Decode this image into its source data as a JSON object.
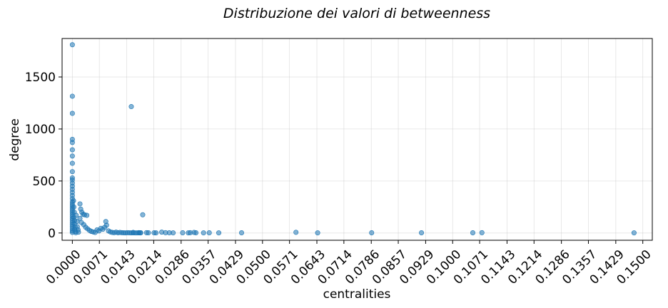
{
  "chart_data": {
    "type": "scatter",
    "title": "Distribuzione dei valori di betweenness",
    "xlabel": "centralities",
    "ylabel": "degree",
    "xlim": [
      -0.0027,
      0.1525
    ],
    "ylim": [
      -70,
      1870
    ],
    "grid": true,
    "point_color": "#1f77b4",
    "point_alpha": 0.55,
    "xticks": [
      "0.0000",
      "0.0071",
      "0.0143",
      "0.0214",
      "0.0286",
      "0.0357",
      "0.0429",
      "0.0500",
      "0.0571",
      "0.0643",
      "0.0714",
      "0.0786",
      "0.0857",
      "0.0929",
      "0.1000",
      "0.1071",
      "0.1143",
      "0.1214",
      "0.1286",
      "0.1357",
      "0.1429",
      "0.1500"
    ],
    "yticks": [
      "0",
      "500",
      "1000",
      "1500"
    ],
    "series": [
      {
        "points": [
          [
            0.0,
            1810
          ],
          [
            0.0,
            1315
          ],
          [
            0.0,
            1150
          ],
          [
            0.0,
            900
          ],
          [
            0.0,
            870
          ],
          [
            0.0,
            800
          ],
          [
            0.0,
            740
          ],
          [
            0.0,
            670
          ],
          [
            0.0,
            590
          ],
          [
            0.0,
            530
          ],
          [
            0.0,
            510
          ],
          [
            0.0,
            480
          ],
          [
            0.0,
            450
          ],
          [
            0.0,
            420
          ],
          [
            0.0,
            390
          ],
          [
            0.0,
            360
          ],
          [
            0.0,
            330
          ],
          [
            0.0,
            300
          ],
          [
            0.0,
            280
          ],
          [
            0.0,
            260
          ],
          [
            0.0,
            240
          ],
          [
            0.0,
            220
          ],
          [
            0.0,
            200
          ],
          [
            0.0,
            180
          ],
          [
            0.0,
            160
          ],
          [
            0.0,
            140
          ],
          [
            0.0,
            120
          ],
          [
            0.0,
            100
          ],
          [
            0.0,
            80
          ],
          [
            0.0,
            60
          ],
          [
            0.0,
            40
          ],
          [
            0.0,
            20
          ],
          [
            0.0,
            5
          ],
          [
            0.0003,
            310
          ],
          [
            0.0004,
            250
          ],
          [
            0.0005,
            200
          ],
          [
            0.0004,
            150
          ],
          [
            0.0006,
            120
          ],
          [
            0.0005,
            90
          ],
          [
            0.0007,
            60
          ],
          [
            0.0006,
            35
          ],
          [
            0.0008,
            15
          ],
          [
            0.0009,
            3
          ],
          [
            0.001,
            170
          ],
          [
            0.0012,
            110
          ],
          [
            0.0013,
            60
          ],
          [
            0.0015,
            30
          ],
          [
            0.0016,
            8
          ],
          [
            0.002,
            280
          ],
          [
            0.0022,
            230
          ],
          [
            0.0025,
            200
          ],
          [
            0.0028,
            180
          ],
          [
            0.0032,
            175
          ],
          [
            0.0038,
            170
          ],
          [
            0.002,
            140
          ],
          [
            0.0024,
            100
          ],
          [
            0.003,
            80
          ],
          [
            0.0035,
            55
          ],
          [
            0.004,
            40
          ],
          [
            0.0045,
            25
          ],
          [
            0.005,
            15
          ],
          [
            0.0055,
            10
          ],
          [
            0.006,
            5
          ],
          [
            0.0065,
            30
          ],
          [
            0.007,
            20
          ],
          [
            0.0075,
            45
          ],
          [
            0.008,
            35
          ],
          [
            0.0085,
            55
          ],
          [
            0.009,
            75
          ],
          [
            0.0088,
            110
          ],
          [
            0.0095,
            20
          ],
          [
            0.01,
            10
          ],
          [
            0.0105,
            5
          ],
          [
            0.011,
            3
          ],
          [
            0.0115,
            8
          ],
          [
            0.012,
            2
          ],
          [
            0.0125,
            5
          ],
          [
            0.013,
            3
          ],
          [
            0.0135,
            2
          ],
          [
            0.014,
            1
          ],
          [
            0.0145,
            3
          ],
          [
            0.015,
            2
          ],
          [
            0.0155,
            1
          ],
          [
            0.016,
            2
          ],
          [
            0.0165,
            1
          ],
          [
            0.017,
            1
          ],
          [
            0.0175,
            2
          ],
          [
            0.0178,
            1
          ],
          [
            0.0155,
            1215
          ],
          [
            0.0185,
            175
          ],
          [
            0.016,
            5
          ],
          [
            0.0175,
            3
          ],
          [
            0.018,
            2
          ],
          [
            0.0195,
            3
          ],
          [
            0.02,
            2
          ],
          [
            0.0215,
            2
          ],
          [
            0.022,
            1
          ],
          [
            0.0235,
            8
          ],
          [
            0.0245,
            3
          ],
          [
            0.0255,
            2
          ],
          [
            0.0265,
            1
          ],
          [
            0.029,
            2
          ],
          [
            0.0305,
            1
          ],
          [
            0.031,
            3
          ],
          [
            0.032,
            5
          ],
          [
            0.0325,
            2
          ],
          [
            0.0345,
            1
          ],
          [
            0.036,
            2
          ],
          [
            0.0385,
            1
          ],
          [
            0.0445,
            2
          ],
          [
            0.0588,
            6
          ],
          [
            0.0645,
            1
          ],
          [
            0.0787,
            2
          ],
          [
            0.0918,
            2
          ],
          [
            0.1053,
            2
          ],
          [
            0.1077,
            3
          ],
          [
            0.1477,
            1
          ]
        ]
      }
    ]
  }
}
